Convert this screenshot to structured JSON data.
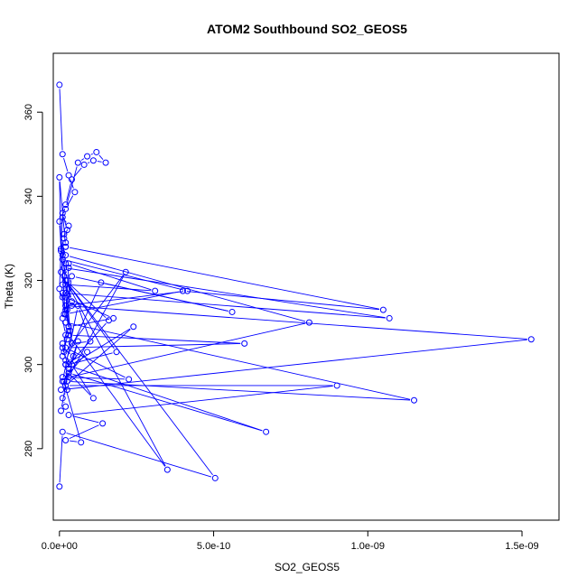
{
  "chart_data": {
    "type": "line",
    "title": "ATOM2 Southbound SO2_GEOS5",
    "xlabel": "SO2_GEOS5",
    "ylabel": "Theta (K)",
    "xlim": [
      -2e-11,
      1.62e-09
    ],
    "ylim": [
      263,
      374
    ],
    "x_ticks": [
      0,
      5e-10,
      1e-09,
      1.5e-09
    ],
    "x_tick_labels": [
      "0.0e+00",
      "5.0e-10",
      "1.0e-09",
      "1.5e-09"
    ],
    "y_ticks": [
      280,
      300,
      320,
      340,
      360
    ],
    "y_tick_labels": [
      "280",
      "300",
      "320",
      "340",
      "360"
    ],
    "grid": false,
    "legend": "none",
    "series": [
      {
        "color": "#0000ff",
        "marker": "open-circle",
        "x": [
          0.0,
          1e-11,
          3e-11,
          5e-11,
          2e-11,
          6e-11,
          9e-11,
          1.2e-10,
          1.5e-10,
          1.1e-10,
          8e-11,
          4e-11,
          2e-11,
          1e-11,
          3e-11,
          1.5e-11,
          5e-12,
          0.0,
          2e-11,
          1e-11,
          2.5e-11,
          4e-11,
          5e-12,
          3e-11,
          1e-11,
          1.5e-11,
          2e-11,
          0.0,
          3.5e-11,
          2.5e-11,
          1e-11,
          4.5e-11,
          2e-11,
          3e-11,
          1.5e-11,
          2.5e-11,
          1e-11,
          2e-11,
          5e-12,
          3e-11,
          1.5e-11,
          2e-11,
          1e-11,
          2.5e-11,
          4e-11,
          2e-11,
          1e-11,
          1.5e-11,
          3e-11,
          2e-11,
          1e-11,
          5e-12,
          2e-11,
          1.5e-11,
          2.5e-11,
          1e-11,
          0.0,
          2e-11,
          3e-11,
          1e-11,
          2e-11,
          1.35e-10,
          5.6e-10,
          4e-11,
          2e-11,
          1.15e-09,
          2.5e-11,
          6e-11,
          3e-11,
          5e-12,
          1.53e-09,
          2e-11,
          3e-11,
          1e-11,
          2.15e-10,
          3e-11,
          8.1e-10,
          2e-11,
          1.5e-11,
          1.07e-09,
          1e-11,
          2e-11,
          3.1e-10,
          3e-11,
          2e-11,
          4e-10,
          1.05e-09,
          2e-11,
          1e-11,
          4.15e-10,
          2e-11,
          3e-11,
          1.75e-10,
          2e-11,
          4e-11,
          1e-10,
          6e-11,
          1e-11,
          9e-11,
          2e-11,
          6.7e-10,
          3e-11,
          1.1e-10,
          4e-11,
          2.4e-10,
          2e-11,
          9e-10,
          3e-11,
          1.4e-10,
          2e-11,
          7e-11,
          1e-11,
          2.25e-10,
          2e-11,
          6e-10,
          3e-11,
          3.5e-10,
          2e-11,
          1.6e-10,
          3e-11,
          1.85e-10,
          2e-11,
          5.05e-10,
          1e-11,
          0.0
        ],
        "y": [
          366.5,
          350.0,
          345.0,
          341.0,
          337.0,
          348.0,
          349.5,
          350.5,
          348.0,
          348.5,
          347.5,
          344.0,
          338.0,
          335.0,
          333.0,
          330.0,
          327.0,
          344.5,
          328.0,
          325.0,
          320.0,
          315.0,
          322.0,
          318.0,
          316.0,
          312.0,
          310.0,
          334.0,
          308.0,
          306.0,
          304.0,
          302.0,
          300.0,
          298.0,
          296.0,
          294.0,
          292.0,
          290.0,
          289.0,
          299.0,
          303.0,
          307.0,
          311.0,
          313.0,
          314.0,
          317.0,
          319.0,
          321.0,
          323.0,
          324.0,
          326.0,
          327.5,
          329.0,
          331.0,
          332.0,
          336.0,
          318.0,
          313.0,
          309.0,
          305.0,
          301.0,
          319.5,
          312.5,
          321.0,
          310.0,
          291.5,
          296.0,
          305.5,
          299.0,
          294.0,
          306.0,
          314.0,
          308.0,
          302.0,
          322.0,
          297.0,
          310.0,
          326.0,
          323.0,
          311.0,
          317.0,
          319.0,
          317.5,
          324.0,
          312.0,
          317.5,
          313.0,
          328.0,
          325.0,
          317.5,
          314.0,
          309.0,
          311.0,
          316.0,
          305.0,
          305.5,
          314.0,
          296.0,
          303.0,
          300.0,
          284.0,
          298.0,
          292.0,
          300.0,
          309.0,
          295.0,
          295.0,
          288.0,
          286.0,
          282.0,
          281.5,
          297.0,
          296.5,
          304.0,
          305.0,
          307.0,
          275.0,
          320.0,
          310.5,
          300.0,
          303.0,
          320.0,
          273.0,
          284.0,
          271.0
        ]
      }
    ]
  }
}
